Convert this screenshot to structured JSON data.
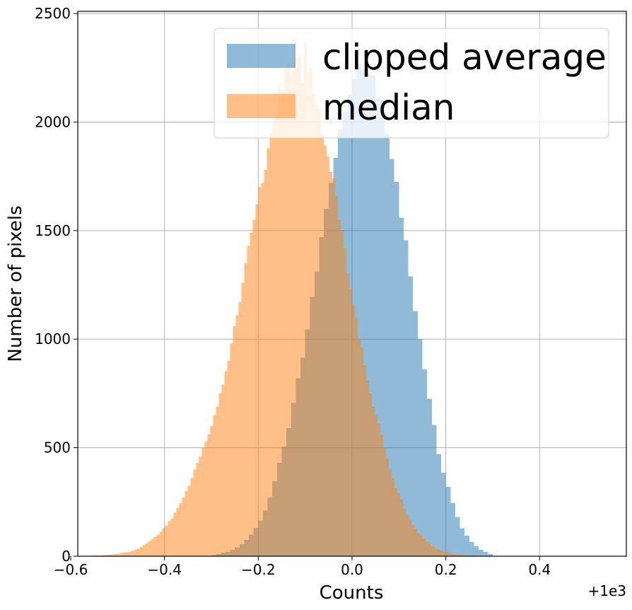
{
  "chart_data": {
    "type": "histogram",
    "title": "",
    "xlabel": "Counts",
    "ylabel": "Number of pixels",
    "x_offset_label": "+1e3",
    "xlim": [
      -0.585,
      0.585
    ],
    "ylim": [
      0,
      2510
    ],
    "xticks": [
      -0.6,
      -0.4,
      -0.2,
      0.0,
      0.2,
      0.4
    ],
    "xtick_labels": [
      "−0.6",
      "−0.4",
      "−0.2",
      "0.0",
      "0.2",
      "0.4"
    ],
    "yticks": [
      0,
      500,
      1000,
      1500,
      2000,
      2500
    ],
    "ytick_labels": [
      "0",
      "500",
      "1000",
      "1500",
      "2000",
      "2500"
    ],
    "grid": true,
    "legend_position": "upper right",
    "series": [
      {
        "name": "clipped average",
        "color": "#1f77b4",
        "alpha": 0.5,
        "bin_start": -0.3,
        "bin_width": 0.01,
        "values": [
          5,
          10,
          17,
          20,
          30,
          40,
          56,
          75,
          100,
          130,
          165,
          210,
          270,
          345,
          430,
          505,
          590,
          705,
          820,
          915,
          1045,
          1195,
          1310,
          1470,
          1600,
          1720,
          1835,
          1965,
          2045,
          2125,
          2200,
          2270,
          2245,
          2230,
          2215,
          2110,
          2060,
          1945,
          1830,
          1725,
          1560,
          1455,
          1290,
          1130,
          1000,
          860,
          725,
          605,
          470,
          385,
          320,
          245,
          180,
          128,
          95,
          65,
          45,
          30,
          20,
          10
        ]
      },
      {
        "name": "median",
        "color": "#ff7f0e",
        "alpha": 0.5,
        "bin_start": -0.58,
        "bin_width": 0.00604,
        "values": [
          1,
          1,
          2,
          2,
          3,
          3,
          4,
          4,
          5,
          6,
          7,
          8,
          10,
          12,
          14,
          16,
          18,
          20,
          25,
          30,
          35,
          42,
          50,
          58,
          68,
          80,
          88,
          100,
          112,
          130,
          140,
          160,
          175,
          200,
          222,
          245,
          270,
          300,
          325,
          360,
          400,
          430,
          460,
          500,
          530,
          560,
          600,
          650,
          690,
          750,
          790,
          850,
          900,
          980,
          1060,
          1110,
          1170,
          1260,
          1350,
          1430,
          1490,
          1550,
          1620,
          1700,
          1720,
          1780,
          1880,
          1950,
          2010,
          2030,
          2180,
          2150,
          2250,
          2270,
          2210,
          2380,
          2300,
          2310,
          2180,
          2370,
          2230,
          2250,
          2130,
          2080,
          2060,
          1940,
          1890,
          1840,
          1770,
          1740,
          1660,
          1550,
          1500,
          1420,
          1300,
          1230,
          1160,
          1100,
          1000,
          960,
          880,
          810,
          750,
          690,
          650,
          610,
          560,
          500,
          450,
          400,
          360,
          315,
          290,
          260,
          220,
          190,
          170,
          145,
          125,
          105,
          95,
          82,
          68,
          58,
          48,
          40,
          33,
          27,
          22,
          17,
          14,
          11,
          9,
          7,
          6,
          5,
          4,
          3,
          3,
          2,
          2,
          1,
          1,
          1,
          1,
          1
        ]
      }
    ]
  }
}
